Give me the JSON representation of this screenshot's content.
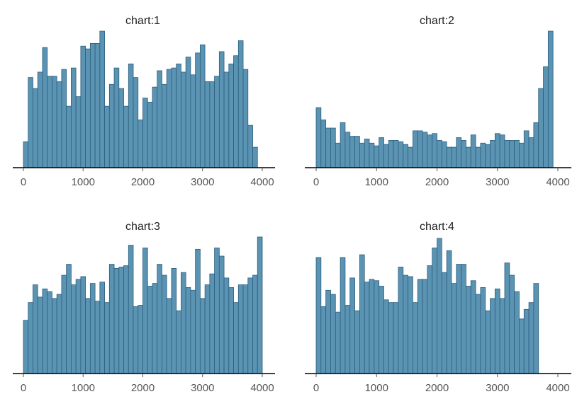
{
  "chart_data": [
    {
      "type": "bar",
      "title": "chart:1",
      "x_ticks": [
        0,
        1000,
        2000,
        3000,
        4000
      ],
      "xlim": [
        -150,
        4150
      ],
      "ylim": [
        0,
        1
      ],
      "bin_start": 0,
      "bin_width": 80,
      "counts": [
        0.19,
        0.66,
        0.58,
        0.7,
        0.88,
        0.67,
        0.67,
        0.63,
        0.72,
        0.45,
        0.73,
        0.52,
        0.89,
        0.87,
        0.91,
        0.91,
        1.0,
        0.45,
        0.61,
        0.73,
        0.58,
        0.45,
        0.76,
        0.66,
        0.35,
        0.51,
        0.48,
        0.59,
        0.71,
        0.61,
        0.72,
        0.73,
        0.76,
        0.7,
        0.81,
        0.68,
        0.84,
        0.9,
        0.63,
        0.63,
        0.67,
        0.85,
        0.7,
        0.76,
        0.82,
        0.93,
        0.72,
        0.31,
        0.15,
        0.0
      ]
    },
    {
      "type": "bar",
      "title": "chart:2",
      "x_ticks": [
        0,
        1000,
        2000,
        3000,
        4000
      ],
      "xlim": [
        -150,
        4150
      ],
      "ylim": [
        0,
        1
      ],
      "bin_start": 0,
      "bin_width": 80,
      "counts": [
        0.44,
        0.35,
        0.29,
        0.29,
        0.18,
        0.33,
        0.26,
        0.23,
        0.23,
        0.18,
        0.21,
        0.18,
        0.16,
        0.22,
        0.17,
        0.2,
        0.2,
        0.19,
        0.17,
        0.15,
        0.27,
        0.27,
        0.26,
        0.24,
        0.25,
        0.2,
        0.19,
        0.15,
        0.15,
        0.22,
        0.2,
        0.15,
        0.24,
        0.15,
        0.18,
        0.17,
        0.2,
        0.25,
        0.24,
        0.2,
        0.2,
        0.2,
        0.18,
        0.27,
        0.22,
        0.33,
        0.58,
        0.74,
        1.0
      ]
    },
    {
      "type": "bar",
      "title": "chart:3",
      "x_ticks": [
        0,
        1000,
        2000,
        3000,
        4000
      ],
      "xlim": [
        -150,
        4150
      ],
      "ylim": [
        0,
        1
      ],
      "bin_start": 0,
      "bin_width": 80,
      "counts": [
        0.39,
        0.52,
        0.65,
        0.56,
        0.62,
        0.6,
        0.55,
        0.58,
        0.72,
        0.8,
        0.65,
        0.69,
        0.71,
        0.55,
        0.66,
        0.53,
        0.67,
        0.52,
        0.8,
        0.77,
        0.78,
        0.79,
        0.94,
        0.49,
        0.5,
        0.92,
        0.64,
        0.66,
        0.8,
        0.72,
        0.55,
        0.77,
        0.46,
        0.74,
        0.63,
        0.61,
        0.91,
        0.55,
        0.65,
        0.73,
        0.92,
        0.86,
        0.7,
        0.63,
        0.52,
        0.65,
        0.65,
        0.7,
        0.72,
        1.0,
        0.0
      ]
    },
    {
      "type": "bar",
      "title": "chart:4",
      "x_ticks": [
        0,
        1000,
        2000,
        3000,
        4000
      ],
      "xlim": [
        -150,
        4150
      ],
      "ylim": [
        0,
        1
      ],
      "bin_start": 0,
      "bin_width": 80,
      "counts": [
        0.85,
        0.49,
        0.61,
        0.58,
        0.45,
        0.85,
        0.5,
        0.7,
        0.46,
        0.87,
        0.67,
        0.69,
        0.68,
        0.64,
        0.54,
        0.52,
        0.52,
        0.78,
        0.72,
        0.71,
        0.52,
        0.69,
        0.69,
        0.79,
        0.92,
        0.99,
        0.74,
        0.9,
        0.66,
        0.8,
        0.8,
        0.64,
        0.68,
        0.58,
        0.63,
        0.46,
        0.55,
        0.62,
        0.55,
        0.81,
        0.72,
        0.6,
        0.4,
        0.47,
        0.52,
        0.66
      ]
    }
  ]
}
